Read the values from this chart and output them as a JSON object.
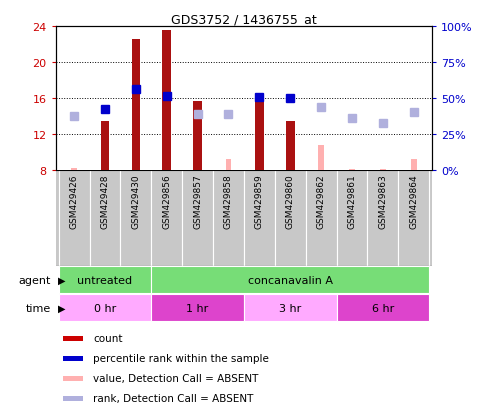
{
  "title": "GDS3752 / 1436755_at",
  "samples": [
    "GSM429426",
    "GSM429428",
    "GSM429430",
    "GSM429856",
    "GSM429857",
    "GSM429858",
    "GSM429859",
    "GSM429860",
    "GSM429862",
    "GSM429861",
    "GSM429863",
    "GSM429864"
  ],
  "red_bars": [
    null,
    13.5,
    22.5,
    23.5,
    15.7,
    null,
    15.8,
    13.5,
    null,
    null,
    null,
    null
  ],
  "pink_bars": [
    8.3,
    null,
    null,
    null,
    null,
    9.3,
    null,
    null,
    10.8,
    8.1,
    8.1,
    9.3
  ],
  "blue_squares": [
    null,
    14.8,
    17.0,
    16.2,
    null,
    null,
    16.1,
    16.0,
    null,
    null,
    null,
    null
  ],
  "lavender_squares": [
    14.0,
    null,
    null,
    null,
    14.2,
    14.2,
    null,
    null,
    15.0,
    13.8,
    13.3,
    14.5
  ],
  "ylim_left": [
    8,
    24
  ],
  "ylim_right": [
    0,
    100
  ],
  "yticks_left": [
    8,
    12,
    16,
    20,
    24
  ],
  "yticks_right": [
    0,
    25,
    50,
    75,
    100
  ],
  "ytick_labels_right": [
    "0%",
    "25%",
    "50%",
    "75%",
    "100%"
  ],
  "legend_items": [
    {
      "color": "#cc0000",
      "label": "count"
    },
    {
      "color": "#0000cc",
      "label": "percentile rank within the sample"
    },
    {
      "color": "#ffb0b0",
      "label": "value, Detection Call = ABSENT"
    },
    {
      "color": "#b0b0dd",
      "label": "rank, Detection Call = ABSENT"
    }
  ],
  "red_color": "#aa1111",
  "pink_color": "#ffb0b0",
  "blue_color": "#0000cc",
  "lavender_color": "#b0b0dd",
  "left_axis_color": "#cc0000",
  "right_axis_color": "#0000cc",
  "green_color": "#77dd77",
  "pink_light": "#ffaaff",
  "pink_dark": "#dd44cc",
  "gray_box": "#c8c8c8",
  "marker_size": 6
}
